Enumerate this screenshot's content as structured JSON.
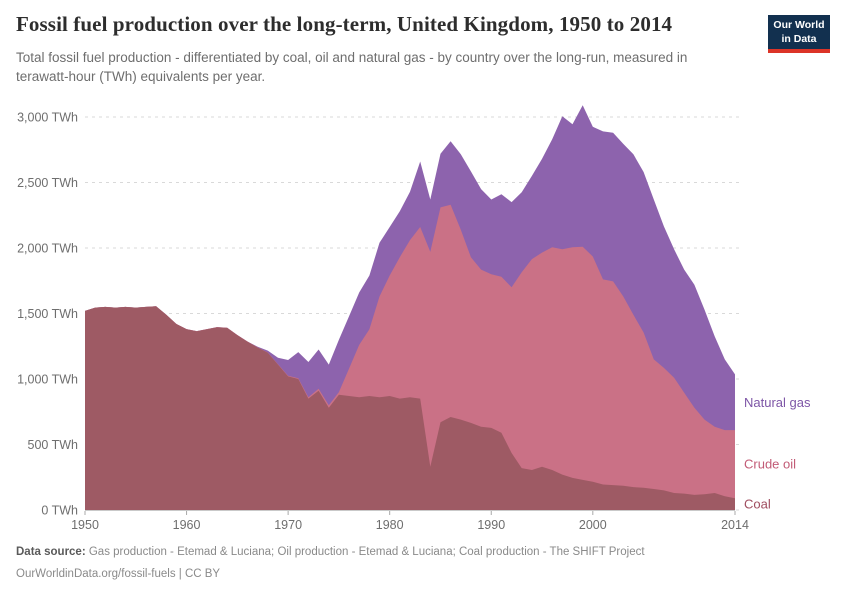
{
  "header": {
    "title": "Fossil fuel production over the long-term, United Kingdom, 1950 to 2014",
    "subtitle": "Total fossil fuel production - differentiated by coal, oil and natural gas - by country over the long-run, measured in terawatt-hour (TWh) equivalents per year.",
    "logo_line1": "Our World",
    "logo_line2": "in Data",
    "logo_bg": "#12304f",
    "logo_accent": "#dc3428"
  },
  "chart_data": {
    "type": "area",
    "stacked": true,
    "title": "Fossil fuel production over the long-term, United Kingdom, 1950 to 2014",
    "xlabel": "",
    "ylabel": "TWh",
    "xlim": [
      1950,
      2014
    ],
    "ylim": [
      0,
      3000
    ],
    "grid": "horizontal-dashed",
    "legend_position": "right-of-plot",
    "x": [
      1950,
      1951,
      1952,
      1953,
      1954,
      1955,
      1956,
      1957,
      1958,
      1959,
      1960,
      1961,
      1962,
      1963,
      1964,
      1965,
      1966,
      1967,
      1968,
      1969,
      1970,
      1971,
      1972,
      1973,
      1974,
      1975,
      1976,
      1977,
      1978,
      1979,
      1980,
      1981,
      1982,
      1983,
      1984,
      1985,
      1986,
      1987,
      1988,
      1989,
      1990,
      1991,
      1992,
      1993,
      1994,
      1995,
      1996,
      1997,
      1998,
      1999,
      2000,
      2001,
      2002,
      2003,
      2004,
      2005,
      2006,
      2007,
      2008,
      2009,
      2010,
      2011,
      2012,
      2013,
      2014
    ],
    "series": [
      {
        "name": "Coal",
        "color": "#9e5a64",
        "label_color": "#a04e60",
        "values": [
          1520,
          1545,
          1550,
          1545,
          1550,
          1545,
          1550,
          1555,
          1490,
          1420,
          1380,
          1365,
          1380,
          1395,
          1390,
          1335,
          1285,
          1240,
          1200,
          1110,
          1020,
          1000,
          850,
          910,
          780,
          880,
          870,
          860,
          870,
          860,
          870,
          850,
          860,
          850,
          330,
          670,
          710,
          690,
          665,
          635,
          627,
          590,
          435,
          320,
          305,
          330,
          305,
          270,
          245,
          230,
          215,
          195,
          190,
          185,
          175,
          170,
          160,
          150,
          130,
          125,
          115,
          120,
          130,
          105,
          90
        ]
      },
      {
        "name": "Crude oil",
        "color": "#ca7186",
        "label_color": "#c25b76",
        "values": [
          0,
          0,
          0,
          0,
          0,
          0,
          0,
          0,
          0,
          0,
          1,
          1,
          1,
          1,
          1,
          1,
          1,
          1,
          2,
          2,
          5,
          5,
          10,
          15,
          20,
          20,
          210,
          400,
          510,
          770,
          920,
          1080,
          1200,
          1310,
          1640,
          1640,
          1620,
          1450,
          1265,
          1200,
          1173,
          1190,
          1265,
          1495,
          1610,
          1635,
          1700,
          1720,
          1760,
          1780,
          1720,
          1565,
          1555,
          1445,
          1315,
          1185,
          990,
          935,
          880,
          770,
          665,
          570,
          505,
          505,
          520
        ]
      },
      {
        "name": "Natural gas",
        "color": "#8d63ad",
        "label_color": "#7d55a6",
        "values": [
          0,
          0,
          0,
          0,
          0,
          0,
          0,
          0,
          0,
          0,
          0,
          0,
          0,
          0,
          0,
          0,
          0,
          5,
          15,
          50,
          120,
          200,
          270,
          300,
          310,
          400,
          400,
          400,
          410,
          410,
          370,
          350,
          370,
          500,
          400,
          410,
          485,
          575,
          655,
          615,
          570,
          630,
          650,
          610,
          635,
          715,
          825,
          1015,
          940,
          1080,
          990,
          1130,
          1135,
          1165,
          1225,
          1225,
          1220,
          1080,
          980,
          940,
          940,
          840,
          690,
          540,
          425
        ]
      }
    ],
    "yticks": [
      0,
      500,
      1000,
      1500,
      2000,
      2500,
      3000
    ],
    "ytick_labels": [
      "0 TWh",
      "500 TWh",
      "1,000 TWh",
      "1,500 TWh",
      "2,000 TWh",
      "2,500 TWh",
      "3,000 TWh"
    ],
    "xticks": [
      1950,
      1960,
      1970,
      1980,
      1990,
      2000,
      2014
    ],
    "xtick_labels": [
      "1950",
      "1960",
      "1970",
      "1980",
      "1990",
      "2000",
      "2014"
    ]
  },
  "footer": {
    "source_label": "Data source:",
    "source_text": " Gas production - Etemad & Luciana; Oil production - Etemad & Luciana; Coal production - The SHIFT Project",
    "link_line": "OurWorldinData.org/fossil-fuels | CC BY"
  }
}
